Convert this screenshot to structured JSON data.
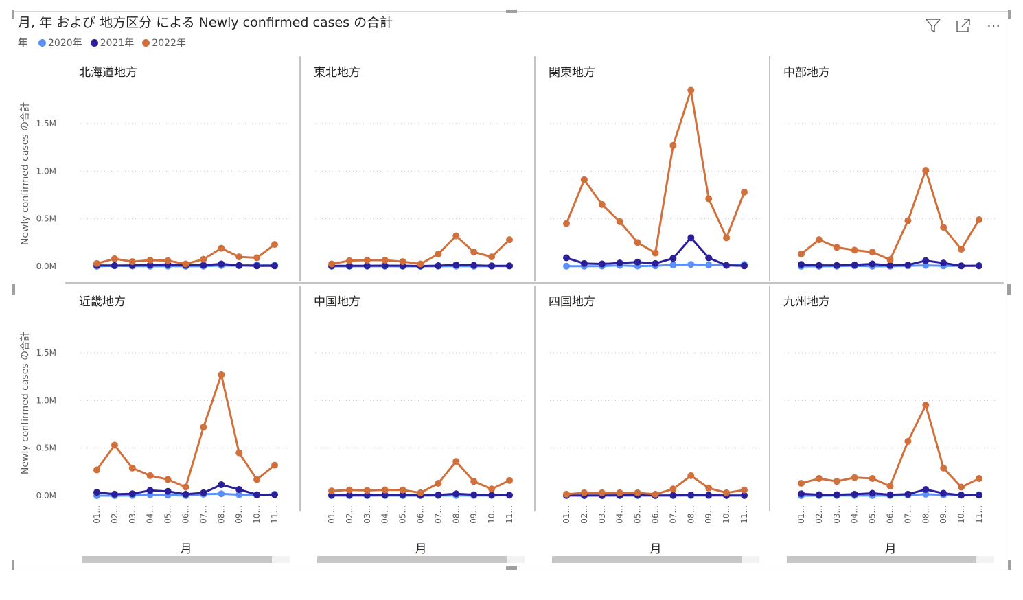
{
  "title": "月, 年 および 地方区分 による Newly confirmed cases の合計",
  "legend": {
    "title": "年",
    "items": [
      {
        "label": "2020年",
        "color": "#5b8ff9"
      },
      {
        "label": "2021年",
        "color": "#2b1f97"
      },
      {
        "label": "2022年",
        "color": "#d0703c"
      }
    ]
  },
  "toolbar": {
    "filter_icon": "filter-icon",
    "focus_icon": "focus-mode-icon",
    "more_icon": "more-options-icon",
    "more_label": "⋯"
  },
  "chart_data": {
    "type": "line",
    "ylabel": "Newly confirmed cases の合計",
    "xlabel": "月",
    "ylim": [
      0,
      1850000
    ],
    "yticks": [
      0,
      500000,
      1000000,
      1500000
    ],
    "ytick_labels": [
      "0.0M",
      "0.5M",
      "1.0M",
      "1.5M"
    ],
    "categories": [
      "01...",
      "02...",
      "03...",
      "04...",
      "05...",
      "06...",
      "07...",
      "08...",
      "09...",
      "10...",
      "11..."
    ],
    "grid": true,
    "legend_position": "top-left",
    "panels": [
      {
        "name": "北海道地方",
        "series": [
          {
            "name": "2020年",
            "values": [
              0,
              5000,
              3000,
              1000,
              2000,
              1000,
              2000,
              8000,
              6000,
              15000,
              12000
            ]
          },
          {
            "name": "2021年",
            "values": [
              10000,
              8000,
              10000,
              15000,
              20000,
              10000,
              12000,
              25000,
              10000,
              5000,
              5000
            ]
          },
          {
            "name": "2022年",
            "values": [
              30000,
              80000,
              50000,
              65000,
              60000,
              25000,
              75000,
              190000,
              100000,
              90000,
              230000
            ]
          }
        ]
      },
      {
        "name": "東北地方",
        "series": [
          {
            "name": "2020年",
            "values": [
              0,
              0,
              1000,
              1000,
              0,
              0,
              1000,
              2000,
              1000,
              2000,
              3000
            ]
          },
          {
            "name": "2021年",
            "values": [
              5000,
              5000,
              6000,
              7000,
              6000,
              4000,
              7000,
              15000,
              10000,
              5000,
              5000
            ]
          },
          {
            "name": "2022年",
            "values": [
              25000,
              60000,
              65000,
              65000,
              50000,
              25000,
              130000,
              320000,
              150000,
              100000,
              280000
            ]
          }
        ]
      },
      {
        "name": "関東地方",
        "series": [
          {
            "name": "2020年",
            "values": [
              2000,
              2000,
              3000,
              10000,
              3000,
              5000,
              15000,
              20000,
              15000,
              10000,
              20000
            ]
          },
          {
            "name": "2021年",
            "values": [
              90000,
              30000,
              25000,
              35000,
              45000,
              30000,
              85000,
              300000,
              90000,
              10000,
              5000
            ]
          },
          {
            "name": "2022年",
            "values": [
              450000,
              910000,
              650000,
              470000,
              250000,
              140000,
              1270000,
              1850000,
              710000,
              300000,
              780000
            ]
          }
        ]
      },
      {
        "name": "中部地方",
        "series": [
          {
            "name": "2020年",
            "values": [
              0,
              0,
              2000,
              5000,
              1000,
              1000,
              5000,
              10000,
              5000,
              5000,
              8000
            ]
          },
          {
            "name": "2021年",
            "values": [
              20000,
              10000,
              10000,
              15000,
              25000,
              10000,
              15000,
              60000,
              35000,
              5000,
              5000
            ]
          },
          {
            "name": "2022年",
            "values": [
              130000,
              280000,
              200000,
              170000,
              150000,
              70000,
              480000,
              1010000,
              410000,
              180000,
              490000
            ]
          }
        ]
      },
      {
        "name": "近畿地方",
        "series": [
          {
            "name": "2020年",
            "values": [
              0,
              0,
              2000,
              10000,
              5000,
              1000,
              15000,
              20000,
              10000,
              5000,
              15000
            ]
          },
          {
            "name": "2021年",
            "values": [
              35000,
              15000,
              20000,
              55000,
              45000,
              15000,
              30000,
              115000,
              65000,
              10000,
              10000
            ]
          },
          {
            "name": "2022年",
            "values": [
              270000,
              530000,
              290000,
              210000,
              170000,
              90000,
              720000,
              1270000,
              450000,
              170000,
              320000
            ]
          }
        ]
      },
      {
        "name": "中国地方",
        "series": [
          {
            "name": "2020年",
            "values": [
              0,
              0,
              0,
              1000,
              0,
              0,
              1000,
              2000,
              1000,
              2000,
              5000
            ]
          },
          {
            "name": "2021年",
            "values": [
              5000,
              5000,
              5000,
              8000,
              10000,
              4000,
              8000,
              20000,
              10000,
              5000,
              5000
            ]
          },
          {
            "name": "2022年",
            "values": [
              50000,
              60000,
              55000,
              60000,
              60000,
              30000,
              130000,
              360000,
              150000,
              70000,
              160000
            ]
          }
        ]
      },
      {
        "name": "四国地方",
        "series": [
          {
            "name": "2020年",
            "values": [
              0,
              0,
              0,
              0,
              0,
              0,
              0,
              1000,
              1000,
              1000,
              2000
            ]
          },
          {
            "name": "2021年",
            "values": [
              3000,
              2000,
              2000,
              3000,
              5000,
              2000,
              3000,
              8000,
              5000,
              2000,
              2000
            ]
          },
          {
            "name": "2022年",
            "values": [
              15000,
              30000,
              30000,
              30000,
              30000,
              15000,
              70000,
              210000,
              80000,
              30000,
              60000
            ]
          }
        ]
      },
      {
        "name": "九州地方",
        "series": [
          {
            "name": "2020年",
            "values": [
              0,
              0,
              1000,
              2000,
              1000,
              1000,
              5000,
              15000,
              8000,
              5000,
              10000
            ]
          },
          {
            "name": "2021年",
            "values": [
              20000,
              10000,
              10000,
              15000,
              25000,
              10000,
              15000,
              65000,
              25000,
              5000,
              5000
            ]
          },
          {
            "name": "2022年",
            "values": [
              130000,
              180000,
              150000,
              190000,
              180000,
              100000,
              570000,
              950000,
              290000,
              90000,
              180000
            ]
          }
        ]
      }
    ]
  }
}
